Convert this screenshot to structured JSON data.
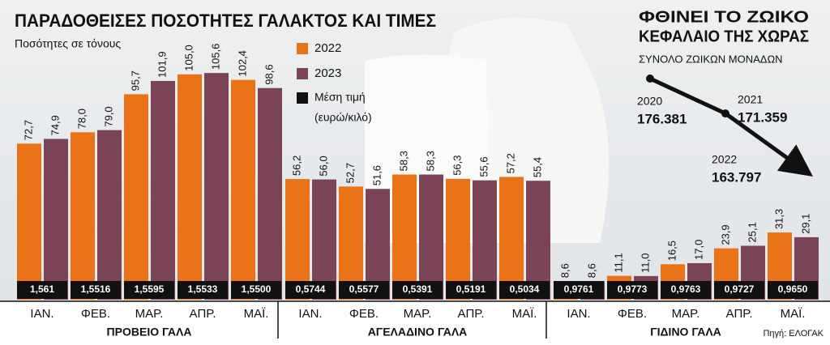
{
  "chart_data": [
    {
      "type": "bar",
      "title": "ΠΑΡΑΔΟΘΕΙΣΕΣ ΠΟΣΟΤΗΤΕΣ ΓΑΛΑΚΤΟΣ ΚΑΙ ΤΙΜΕΣ",
      "subtitle": "Ποσότητες σε τόνους",
      "series": [
        {
          "name": "2022",
          "color": "#ea7318"
        },
        {
          "name": "2023",
          "color": "#7b4356"
        }
      ],
      "price_name": "Μέση τιμή",
      "price_unit": "(ευρώ/κιλό)",
      "price_color": "#111111",
      "groups": [
        {
          "name": "ΠΡΟΒΕΙΟ ΓΑΛΑ",
          "categories": [
            "ΙΑΝ.",
            "ΦΕΒ.",
            "ΜΑΡ.",
            "ΑΠΡ.",
            "ΜΑΪ."
          ],
          "series": [
            {
              "values": [
                72.7,
                78.0,
                95.7,
                105.0,
                102.4
              ],
              "value_labels": [
                "72,7",
                "78,0",
                "95,7",
                "105,0",
                "102,4"
              ]
            },
            {
              "values": [
                74.9,
                79.0,
                101.9,
                105.6,
                98.6
              ],
              "value_labels": [
                "74,9",
                "79,0",
                "101,9",
                "105,6",
                "98,6"
              ]
            }
          ],
          "prices": [
            1.561,
            1.5516,
            1.5595,
            1.5533,
            1.55
          ],
          "price_labels": [
            "1,561",
            "1,5516",
            "1,5595",
            "1,5533",
            "1,5500"
          ]
        },
        {
          "name": "ΑΓΕΛΑΔΙΝΟ ΓΑΛΑ",
          "categories": [
            "ΙΑΝ.",
            "ΦΕΒ.",
            "ΜΑΡ.",
            "ΑΠΡ.",
            "ΜΑΪ."
          ],
          "series": [
            {
              "values": [
                56.2,
                52.7,
                58.3,
                56.3,
                57.2
              ],
              "value_labels": [
                "56,2",
                "52,7",
                "58,3",
                "56,3",
                "57,2"
              ]
            },
            {
              "values": [
                56.0,
                51.6,
                58.3,
                55.6,
                55.4
              ],
              "value_labels": [
                "56,0",
                "51,6",
                "58,3",
                "55,6",
                "55,4"
              ]
            }
          ],
          "prices": [
            0.5744,
            0.5577,
            0.5391,
            0.5191,
            0.5034
          ],
          "price_labels": [
            "0,5744",
            "0,5577",
            "0,5391",
            "0,5191",
            "0,5034"
          ]
        },
        {
          "name": "ΓΙΔΙΝΟ ΓΑΛΑ",
          "categories": [
            "ΙΑΝ.",
            "ΦΕΒ.",
            "ΜΑΡ.",
            "ΑΠΡ.",
            "ΜΑΪ."
          ],
          "series": [
            {
              "values": [
                8.6,
                11.1,
                16.5,
                23.9,
                31.3
              ],
              "value_labels": [
                "8,6",
                "11,1",
                "16,5",
                "23,9",
                "31,3"
              ]
            },
            {
              "values": [
                8.6,
                11.0,
                17.0,
                25.1,
                29.1
              ],
              "value_labels": [
                "8,6",
                "11,0",
                "17,0",
                "25,1",
                "29,1"
              ]
            }
          ],
          "prices": [
            0.9761,
            0.9773,
            0.9763,
            0.9727,
            0.965
          ],
          "price_labels": [
            "0,9761",
            "0,9773",
            "0,9763",
            "0,9727",
            "0,9650"
          ]
        }
      ],
      "source": "Πηγή: ΕΛΟΓΑΚ"
    },
    {
      "type": "line",
      "title": [
        "ΦΘΙΝΕΙ ΤΟ ΖΩΙΚΟ",
        "ΚΕΦΑΛΑΙΟ ΤΗΣ ΧΩΡΑΣ"
      ],
      "subtitle": "ΣΥΝΟΛΟ ΖΩΙΚΩΝ ΜΟΝΑΔΩΝ",
      "categories": [
        "2020",
        "2021",
        "2022"
      ],
      "values": [
        176381,
        171359,
        163797
      ],
      "value_labels": [
        "176.381",
        "171.359",
        "163.797"
      ],
      "color": "#111111"
    }
  ]
}
